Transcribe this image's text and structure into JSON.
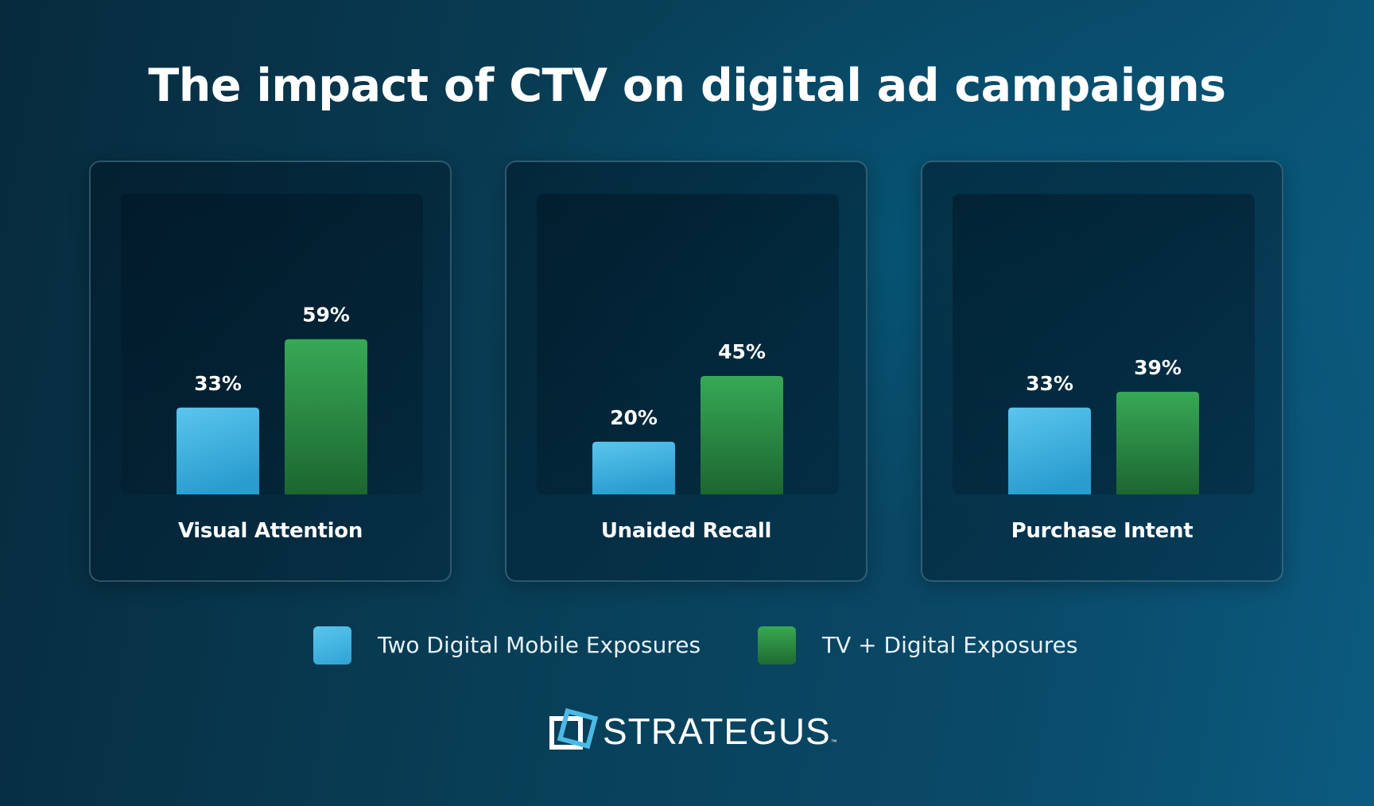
{
  "title": "The impact of CTV on digital ad campaigns",
  "colors": {
    "two_digital_mobile": "#4cb9e6",
    "tv_digital": "#2e9a4a",
    "background": "#083e56"
  },
  "chart_data": {
    "type": "bar",
    "categories": [
      "Visual Attention",
      "Unaided Recall",
      "Purchase Intent"
    ],
    "series": [
      {
        "name": "Two Digital Mobile Exposures",
        "values": [
          33,
          20,
          33
        ],
        "labels": [
          "33%",
          "20%",
          "33%"
        ]
      },
      {
        "name": "TV + Digital Exposures",
        "values": [
          59,
          45,
          39
        ],
        "labels": [
          "59%",
          "45%",
          "39%"
        ]
      }
    ],
    "unit": "%",
    "ylim": [
      0,
      65
    ],
    "grid": false,
    "legend_position": "bottom"
  },
  "logo": {
    "icon": "square-frame-logo-icon",
    "wordmark": "STRATEGUS",
    "trademark": "™"
  }
}
